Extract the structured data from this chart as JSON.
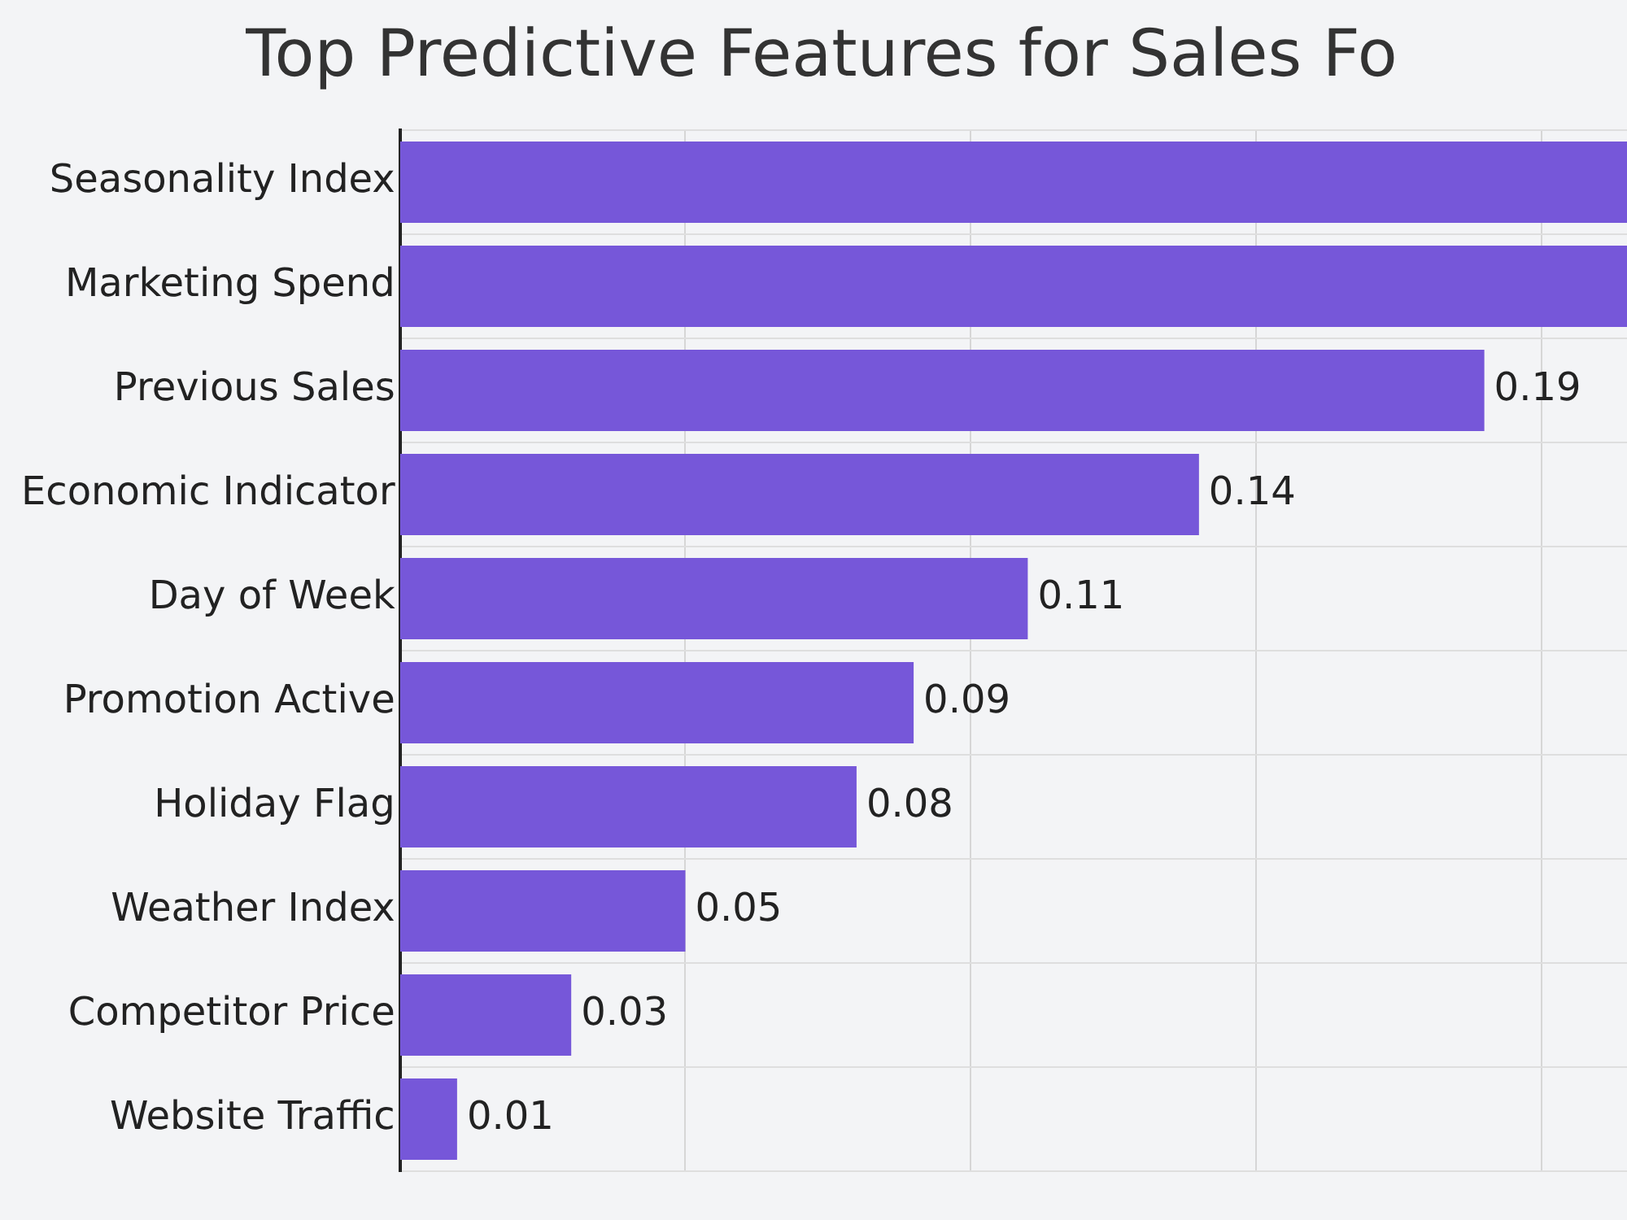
{
  "chart_data": {
    "type": "bar",
    "orientation": "horizontal",
    "title": "Top Predictive Features for Sales Fo",
    "categories": [
      "Seasonality Index",
      "Marketing Spend",
      "Previous Sales",
      "Economic Indicator",
      "Day of Week",
      "Promotion Active",
      "Holiday Flag",
      "Weather Index",
      "Competitor Price",
      "Website Traffic"
    ],
    "values": [
      0.215,
      0.215,
      0.19,
      0.14,
      0.11,
      0.09,
      0.08,
      0.05,
      0.03,
      0.01
    ],
    "value_labels": [
      null,
      null,
      "0.19",
      "0.14",
      "0.11",
      "0.09",
      "0.08",
      "0.05",
      "0.03",
      "0.01"
    ],
    "color": "#7657d9",
    "xlim": [
      0,
      0.215
    ],
    "xticks": [
      {
        "value": 0.05,
        "label": null
      },
      {
        "value": 0.1,
        "label": null
      },
      {
        "value": 0.15,
        "label": null
      },
      {
        "value": 0.2,
        "label": null
      }
    ],
    "tick_labels": "y",
    "grid": true,
    "legend": false
  }
}
